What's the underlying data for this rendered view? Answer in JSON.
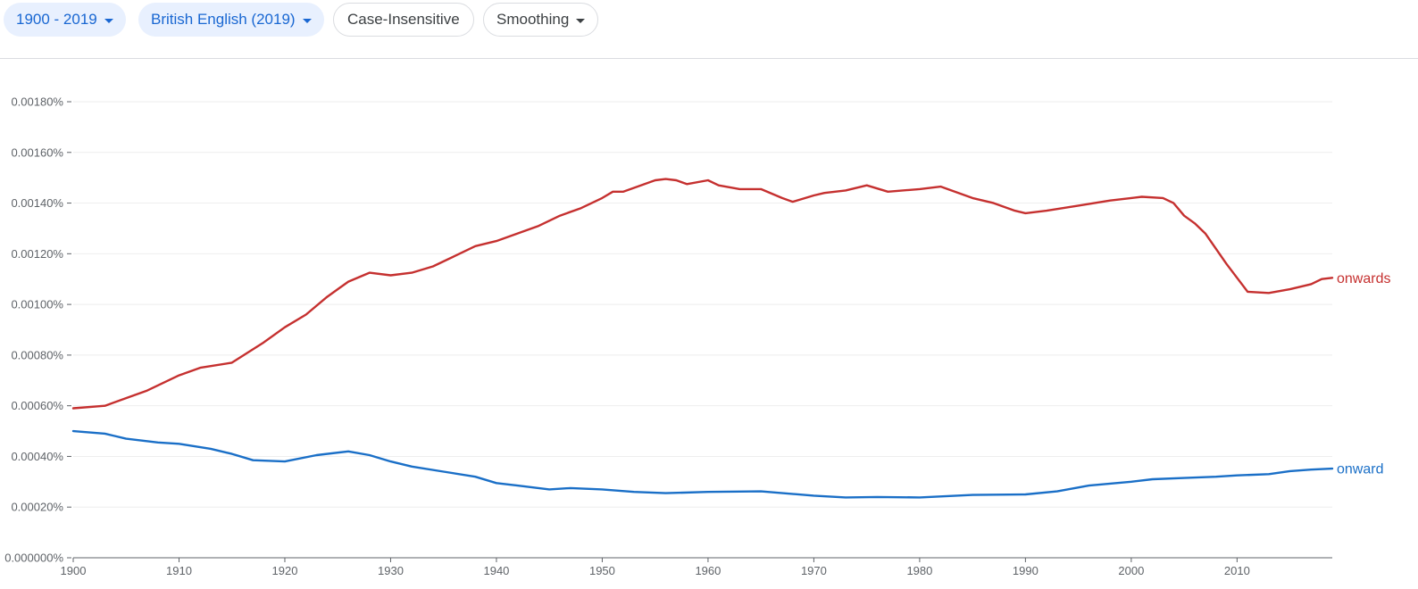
{
  "toolbar": {
    "year_range": "1900 - 2019",
    "corpus": "British English (2019)",
    "case": "Case-Insensitive",
    "smoothing": "Smoothing"
  },
  "colors": {
    "onwards": "#c5302f",
    "onward": "#1a6fc7",
    "grid": "#eeeeee",
    "axis": "#5f6368"
  },
  "chart_data": {
    "type": "line",
    "title": "",
    "xlabel": "",
    "ylabel": "",
    "xlim": [
      1900,
      2019
    ],
    "ylim": [
      0,
      0.0018
    ],
    "x_ticks": [
      1900,
      1910,
      1920,
      1930,
      1940,
      1950,
      1960,
      1970,
      1980,
      1990,
      2000,
      2010
    ],
    "y_ticks": [
      {
        "value": 0.0,
        "label": "0.000000%"
      },
      {
        "value": 0.0002,
        "label": "0.00020%"
      },
      {
        "value": 0.0004,
        "label": "0.00040%"
      },
      {
        "value": 0.0006,
        "label": "0.00060%"
      },
      {
        "value": 0.0008,
        "label": "0.00080%"
      },
      {
        "value": 0.001,
        "label": "0.00100%"
      },
      {
        "value": 0.0012,
        "label": "0.00120%"
      },
      {
        "value": 0.0014,
        "label": "0.00140%"
      },
      {
        "value": 0.0016,
        "label": "0.00160%"
      },
      {
        "value": 0.0018,
        "label": "0.00180%"
      }
    ],
    "series": [
      {
        "name": "onwards",
        "label": "onwards",
        "x": [
          1900,
          1903,
          1905,
          1907,
          1910,
          1912,
          1915,
          1918,
          1920,
          1922,
          1924,
          1926,
          1928,
          1930,
          1932,
          1934,
          1936,
          1938,
          1940,
          1942,
          1944,
          1946,
          1948,
          1950,
          1951,
          1952,
          1953,
          1955,
          1956,
          1957,
          1958,
          1960,
          1961,
          1963,
          1965,
          1967,
          1968,
          1970,
          1971,
          1973,
          1975,
          1977,
          1980,
          1982,
          1983,
          1985,
          1987,
          1989,
          1990,
          1992,
          1995,
          1998,
          2000,
          2001,
          2003,
          2004,
          2005,
          2006,
          2007,
          2009,
          2011,
          2013,
          2015,
          2017,
          2018,
          2019
        ],
        "values": [
          0.00059,
          0.0006,
          0.00063,
          0.00066,
          0.00072,
          0.00075,
          0.00077,
          0.00085,
          0.00091,
          0.00096,
          0.00103,
          0.00109,
          0.001125,
          0.001115,
          0.001125,
          0.00115,
          0.00119,
          0.00123,
          0.00125,
          0.00128,
          0.00131,
          0.00135,
          0.00138,
          0.00142,
          0.001445,
          0.001445,
          0.00146,
          0.00149,
          0.001495,
          0.00149,
          0.001475,
          0.00149,
          0.00147,
          0.001455,
          0.001455,
          0.00142,
          0.001405,
          0.00143,
          0.00144,
          0.00145,
          0.00147,
          0.001445,
          0.001455,
          0.001465,
          0.00145,
          0.00142,
          0.0014,
          0.00137,
          0.00136,
          0.00137,
          0.00139,
          0.00141,
          0.00142,
          0.001425,
          0.00142,
          0.0014,
          0.00135,
          0.00132,
          0.00128,
          0.00116,
          0.00105,
          0.001045,
          0.00106,
          0.00108,
          0.0011,
          0.001105
        ]
      },
      {
        "name": "onward",
        "label": "onward",
        "x": [
          1900,
          1903,
          1905,
          1908,
          1910,
          1913,
          1915,
          1917,
          1920,
          1923,
          1926,
          1928,
          1930,
          1932,
          1935,
          1938,
          1940,
          1942,
          1945,
          1947,
          1950,
          1953,
          1956,
          1960,
          1965,
          1970,
          1973,
          1976,
          1980,
          1985,
          1990,
          1993,
          1996,
          2000,
          2002,
          2005,
          2008,
          2010,
          2013,
          2015,
          2017,
          2019
        ],
        "values": [
          0.0005,
          0.00049,
          0.00047,
          0.000455,
          0.00045,
          0.00043,
          0.00041,
          0.000385,
          0.00038,
          0.000405,
          0.00042,
          0.000405,
          0.00038,
          0.00036,
          0.00034,
          0.00032,
          0.000295,
          0.000285,
          0.00027,
          0.000275,
          0.00027,
          0.00026,
          0.000255,
          0.00026,
          0.000262,
          0.000245,
          0.000238,
          0.00024,
          0.000238,
          0.000248,
          0.00025,
          0.000262,
          0.000285,
          0.0003,
          0.00031,
          0.000315,
          0.00032,
          0.000325,
          0.00033,
          0.000342,
          0.000348,
          0.000352
        ]
      }
    ]
  }
}
